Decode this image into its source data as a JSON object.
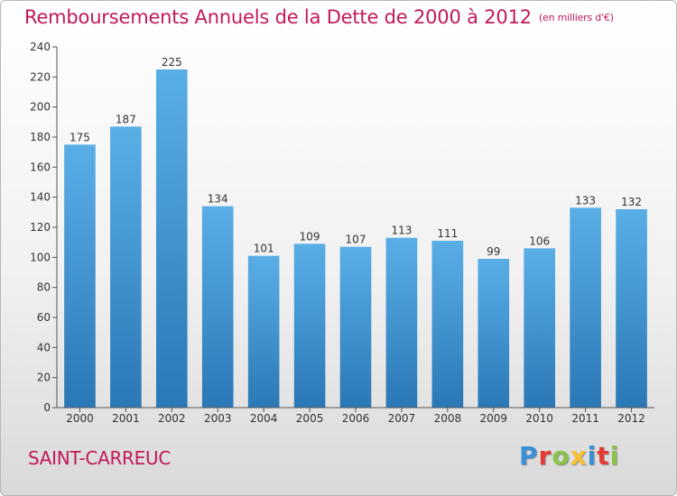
{
  "header": {
    "title": "Remboursements Annuels de la Dette de 2000 à 2012",
    "subtitle": "(en milliers d'€)"
  },
  "footer": {
    "city": "SAINT-CARREUC",
    "logo_letters": [
      {
        "char": "P",
        "color": "#3b8fd6"
      },
      {
        "char": "r",
        "color": "#e53935"
      },
      {
        "char": "o",
        "color": "#8bc34a"
      },
      {
        "char": "x",
        "color": "#fbc02d"
      },
      {
        "char": "i",
        "color": "#3b8fd6"
      },
      {
        "char": "t",
        "color": "#e53935"
      },
      {
        "char": "i",
        "color": "#8bc34a"
      }
    ]
  },
  "chart_data": {
    "type": "bar",
    "categories": [
      "2000",
      "2001",
      "2002",
      "2003",
      "2004",
      "2005",
      "2006",
      "2007",
      "2008",
      "2009",
      "2010",
      "2011",
      "2012"
    ],
    "values": [
      175,
      187,
      225,
      134,
      101,
      109,
      107,
      113,
      111,
      99,
      106,
      133,
      132
    ],
    "data_labels": [
      "175",
      "187",
      "225",
      "134",
      "101",
      "109",
      "107",
      "113",
      "111",
      "99",
      "106",
      "133",
      "132"
    ],
    "title": "Remboursements Annuels de la Dette de 2000 à 2012",
    "xlabel": "",
    "ylabel": "",
    "ylim": [
      0,
      240
    ],
    "yticks": [
      0,
      20,
      40,
      60,
      80,
      100,
      120,
      140,
      160,
      180,
      200,
      220,
      240
    ],
    "grid": false,
    "bar_color_top": "#5aaee6",
    "bar_color_bottom": "#2a78b6"
  }
}
